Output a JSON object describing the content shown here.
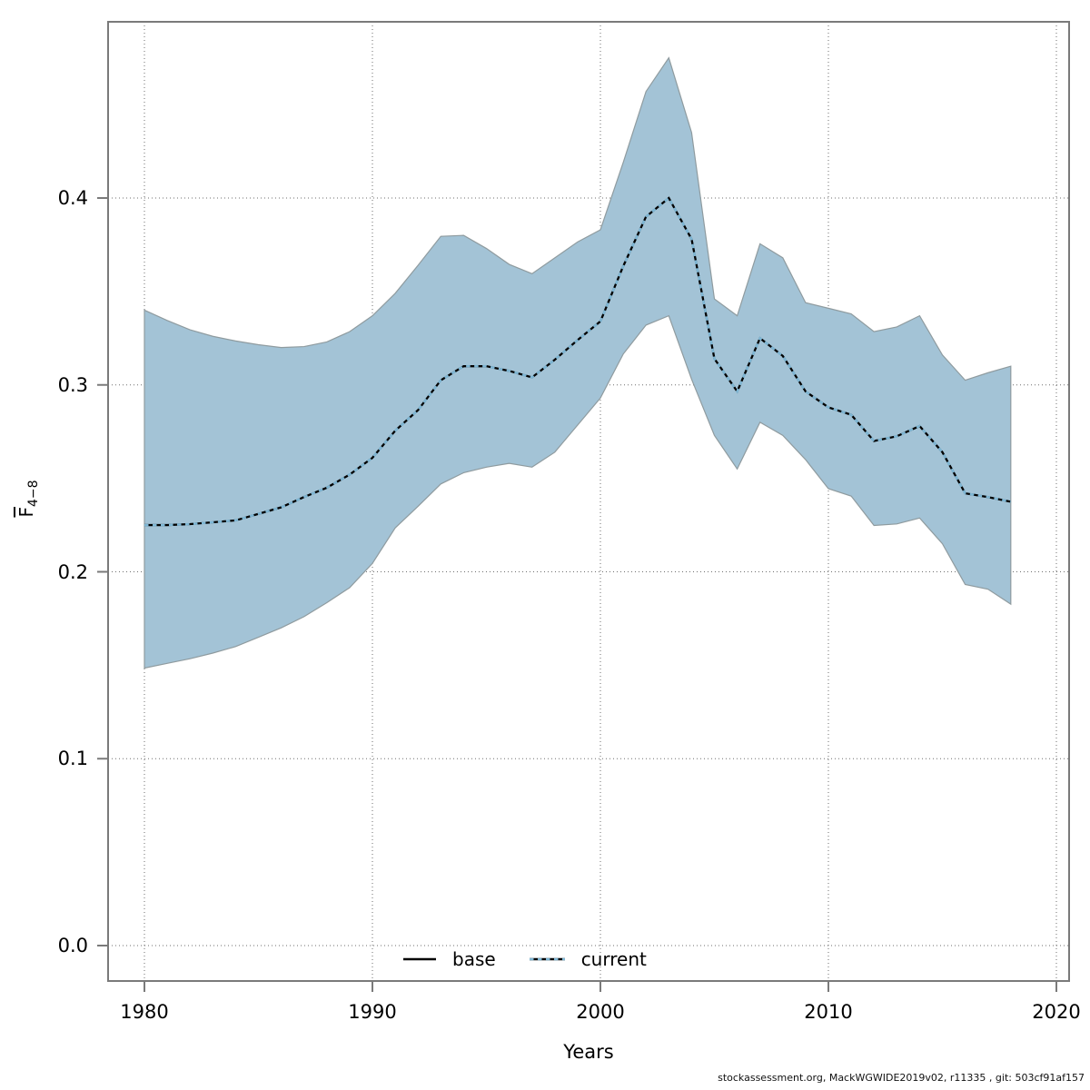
{
  "figure": {
    "attribution": "stockassessment.org, MackWGWIDE2019v02, r11335 , git: 503cf91af157"
  },
  "chart_data": {
    "type": "line",
    "title": "",
    "xlabel": "Years",
    "ylabel_main": "F",
    "ylabel_sub": "4−8",
    "grid": "dotted",
    "legend_position": "bottom-center-inside",
    "xlim": [
      1978.4,
      2020.6
    ],
    "ylim": [
      -0.019,
      0.494
    ],
    "xticks": [
      1980,
      1990,
      2000,
      2010,
      2020
    ],
    "yticks": [
      "0.0",
      "0.1",
      "0.2",
      "0.3",
      "0.4"
    ],
    "x": [
      1980,
      1981,
      1982,
      1983,
      1984,
      1985,
      1986,
      1987,
      1988,
      1989,
      1990,
      1991,
      1992,
      1993,
      1994,
      1995,
      1996,
      1997,
      1998,
      1999,
      2000,
      2001,
      2002,
      2003,
      2004,
      2005,
      2006,
      2007,
      2008,
      2009,
      2010,
      2011,
      2012,
      2013,
      2014,
      2015,
      2016,
      2017,
      2018
    ],
    "series": [
      {
        "name": "base",
        "style": "solid",
        "color": "#000000",
        "y": [
          0.225,
          0.225,
          0.2255,
          0.2265,
          0.2275,
          0.231,
          0.2345,
          0.24,
          0.245,
          0.252,
          0.261,
          0.2755,
          0.2865,
          0.3025,
          0.31,
          0.31,
          0.3075,
          0.304,
          0.3135,
          0.324,
          0.334,
          0.3635,
          0.39,
          0.4,
          0.378,
          0.314,
          0.2965,
          0.325,
          0.3155,
          0.2965,
          0.288,
          0.284,
          0.27,
          0.2725,
          0.278,
          0.264,
          0.242,
          0.24,
          0.2375
        ]
      },
      {
        "name": "current",
        "style": "dotted",
        "color": "#7eb6d4",
        "y": [
          0.225,
          0.225,
          0.2255,
          0.2265,
          0.2275,
          0.231,
          0.2345,
          0.24,
          0.245,
          0.252,
          0.261,
          0.2755,
          0.2865,
          0.3025,
          0.31,
          0.31,
          0.3075,
          0.304,
          0.3135,
          0.324,
          0.334,
          0.3635,
          0.39,
          0.4,
          0.378,
          0.314,
          0.2965,
          0.325,
          0.3155,
          0.2965,
          0.288,
          0.284,
          0.27,
          0.2725,
          0.278,
          0.264,
          0.242,
          0.24,
          0.2375
        ]
      }
    ],
    "band": {
      "series": "current",
      "fill": "#a3c3d6",
      "edge_color": "#8f9b9f",
      "upper": [
        0.34,
        0.3345,
        0.3295,
        0.326,
        0.3235,
        0.3215,
        0.32,
        0.3205,
        0.323,
        0.3285,
        0.337,
        0.349,
        0.364,
        0.3795,
        0.38,
        0.373,
        0.3645,
        0.3595,
        0.368,
        0.3765,
        0.383,
        0.419,
        0.457,
        0.475,
        0.435,
        0.346,
        0.337,
        0.3755,
        0.368,
        0.344,
        0.341,
        0.338,
        0.3285,
        0.331,
        0.337,
        0.316,
        0.3025,
        0.3065,
        0.31
      ],
      "lower": [
        0.1485,
        0.151,
        0.1535,
        0.1565,
        0.16,
        0.165,
        0.17,
        0.176,
        0.1835,
        0.1915,
        0.2045,
        0.2235,
        0.235,
        0.247,
        0.253,
        0.256,
        0.258,
        0.256,
        0.264,
        0.2785,
        0.293,
        0.3165,
        0.332,
        0.337,
        0.303,
        0.273,
        0.255,
        0.28,
        0.273,
        0.26,
        0.2445,
        0.2405,
        0.2248,
        0.2256,
        0.2288,
        0.215,
        0.1932,
        0.1907,
        0.1827
      ]
    },
    "panel": {
      "border_color": "#7a7a7a",
      "grid_color": "#6e6e6e",
      "tick_color": "#7a7a7a"
    }
  }
}
